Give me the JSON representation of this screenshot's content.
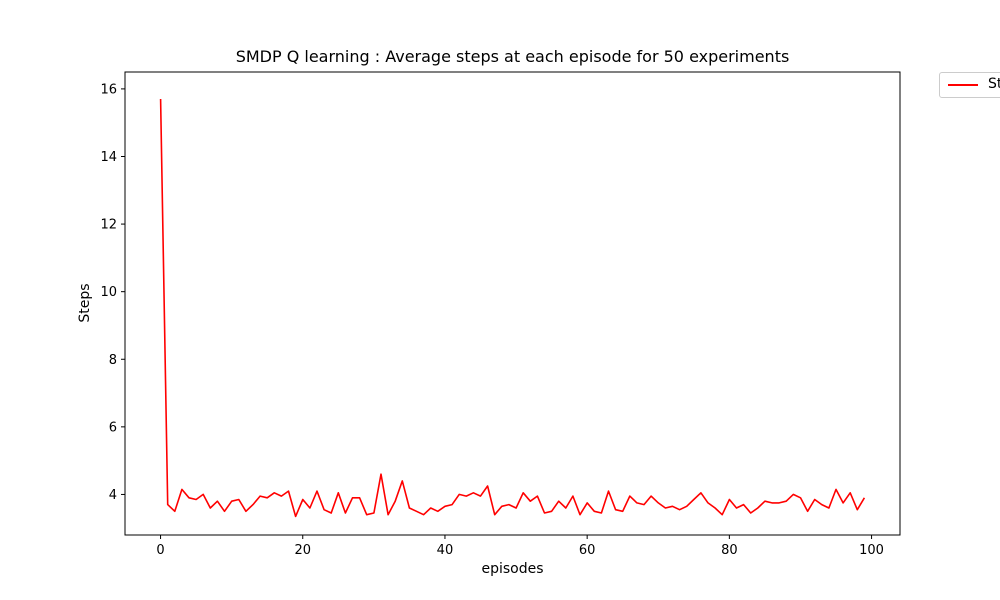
{
  "chart_data": {
    "type": "line",
    "title": "SMDP Q learning : Average steps at each episode for 50 experiments",
    "xlabel": "episodes",
    "ylabel": "Steps",
    "xlim": [
      -5,
      104
    ],
    "ylim": [
      2.8,
      16.5
    ],
    "xticks": [
      0,
      20,
      40,
      60,
      80,
      100
    ],
    "yticks": [
      4,
      6,
      8,
      10,
      12,
      14,
      16
    ],
    "grid": false,
    "legend_position": "outside-top-right",
    "series": [
      {
        "name": "St",
        "color": "#ff0000",
        "x": [
          0,
          1,
          2,
          3,
          4,
          5,
          6,
          7,
          8,
          9,
          10,
          11,
          12,
          13,
          14,
          15,
          16,
          17,
          18,
          19,
          20,
          21,
          22,
          23,
          24,
          25,
          26,
          27,
          28,
          29,
          30,
          31,
          32,
          33,
          34,
          35,
          36,
          37,
          38,
          39,
          40,
          41,
          42,
          43,
          44,
          45,
          46,
          47,
          48,
          49,
          50,
          51,
          52,
          53,
          54,
          55,
          56,
          57,
          58,
          59,
          60,
          61,
          62,
          63,
          64,
          65,
          66,
          67,
          68,
          69,
          70,
          71,
          72,
          73,
          74,
          75,
          76,
          77,
          78,
          79,
          80,
          81,
          82,
          83,
          84,
          85,
          86,
          87,
          88,
          89,
          90,
          91,
          92,
          93,
          94,
          95,
          96,
          97,
          98,
          99
        ],
        "values": [
          15.7,
          3.7,
          3.5,
          4.15,
          3.9,
          3.85,
          4.0,
          3.6,
          3.8,
          3.5,
          3.8,
          3.85,
          3.5,
          3.7,
          3.95,
          3.9,
          4.05,
          3.95,
          4.1,
          3.35,
          3.85,
          3.6,
          4.1,
          3.55,
          3.45,
          4.05,
          3.45,
          3.9,
          3.9,
          3.4,
          3.45,
          4.6,
          3.4,
          3.8,
          4.4,
          3.6,
          3.5,
          3.4,
          3.6,
          3.5,
          3.65,
          3.7,
          4.0,
          3.95,
          4.05,
          3.95,
          4.25,
          3.4,
          3.65,
          3.7,
          3.6,
          4.05,
          3.8,
          3.95,
          3.45,
          3.5,
          3.8,
          3.6,
          3.95,
          3.4,
          3.75,
          3.5,
          3.45,
          4.1,
          3.55,
          3.5,
          3.95,
          3.75,
          3.7,
          3.95,
          3.75,
          3.6,
          3.65,
          3.55,
          3.65,
          3.85,
          4.05,
          3.75,
          3.6,
          3.4,
          3.85,
          3.6,
          3.7,
          3.45,
          3.6,
          3.8,
          3.75,
          3.75,
          3.8,
          4.0,
          3.9,
          3.5,
          3.85,
          3.7,
          3.6,
          4.15,
          3.75,
          4.05,
          3.55,
          3.9
        ]
      }
    ]
  }
}
